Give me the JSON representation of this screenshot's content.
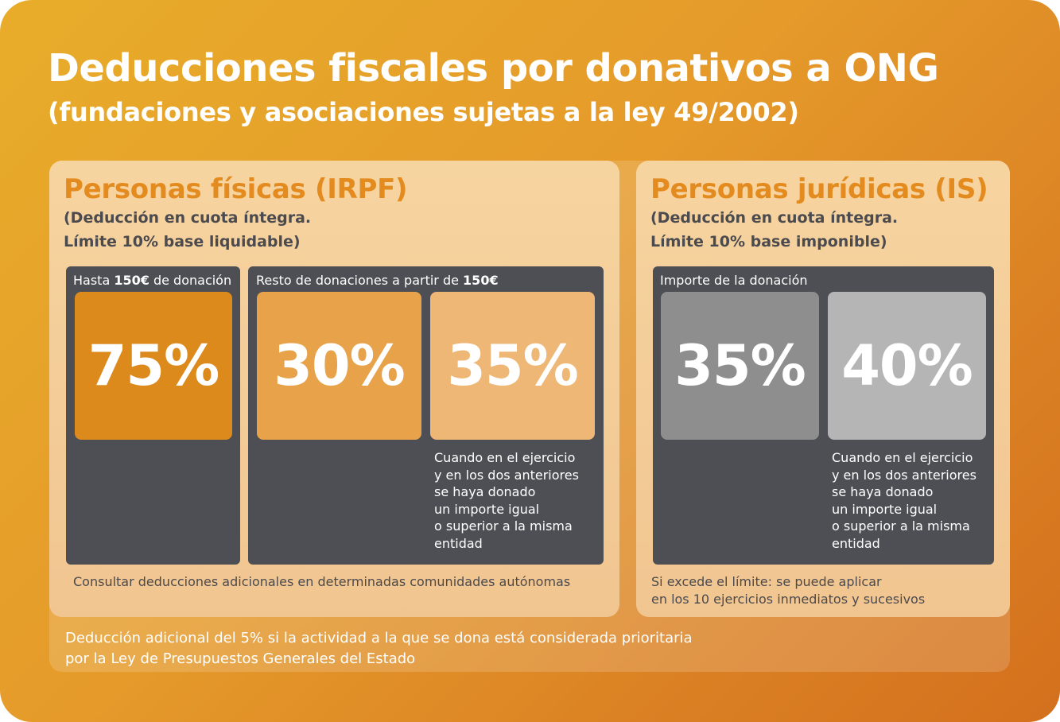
{
  "header": {
    "title": "Deducciones fiscales por donativos a ONG",
    "subtitle": "(fundaciones y asociaciones sujetas a la ley 49/2002)"
  },
  "colors": {
    "accent_orange": "#e38b1f",
    "dark_box": "#4d4f55",
    "tile_75": "#dd8a1c",
    "tile_30": "#e8a34a",
    "tile_35_orange": "#efb775",
    "tile_35_gray": "#8e8e8e",
    "tile_40": "#b5b5b5"
  },
  "irpf": {
    "heading": "Personas físicas (IRPF)",
    "desc_line1": "(Deducción en cuota íntegra.",
    "desc_line2": "Límite 10% base liquidable)",
    "box1": {
      "label_pre": "Hasta ",
      "label_bold": "150€",
      "label_post": " de donación",
      "value": "75%"
    },
    "box2": {
      "label_pre": "Resto de donaciones a partir de ",
      "label_bold": "150€",
      "value_a": "30%",
      "value_b": "35%",
      "note": [
        "Cuando en el ejercicio",
        "y en los dos anteriores",
        "se haya donado",
        "un importe igual",
        "o superior a la misma",
        "entidad"
      ]
    },
    "footnote": "Consultar deducciones adicionales en determinadas comunidades autónomas"
  },
  "is": {
    "heading": "Personas jurídicas (IS)",
    "desc_line1": "(Deducción en cuota íntegra.",
    "desc_line2": "Límite 10% base imponible)",
    "box": {
      "label": "Importe de la donación",
      "value_a": "35%",
      "value_b": "40%",
      "note": [
        "Cuando en el ejercicio",
        "y en los dos anteriores",
        "se haya donado",
        "un importe igual",
        "o superior a la misma",
        "entidad"
      ]
    },
    "footnote_line1": "Si excede el límite: se puede aplicar",
    "footnote_line2": "en los 10 ejercicios inmediatos y sucesivos"
  },
  "bottom_note": {
    "line1": "Deducción adicional del 5% si la actividad a la que se dona está considerada prioritaria",
    "line2": "por la Ley de Presupuestos Generales del Estado"
  }
}
